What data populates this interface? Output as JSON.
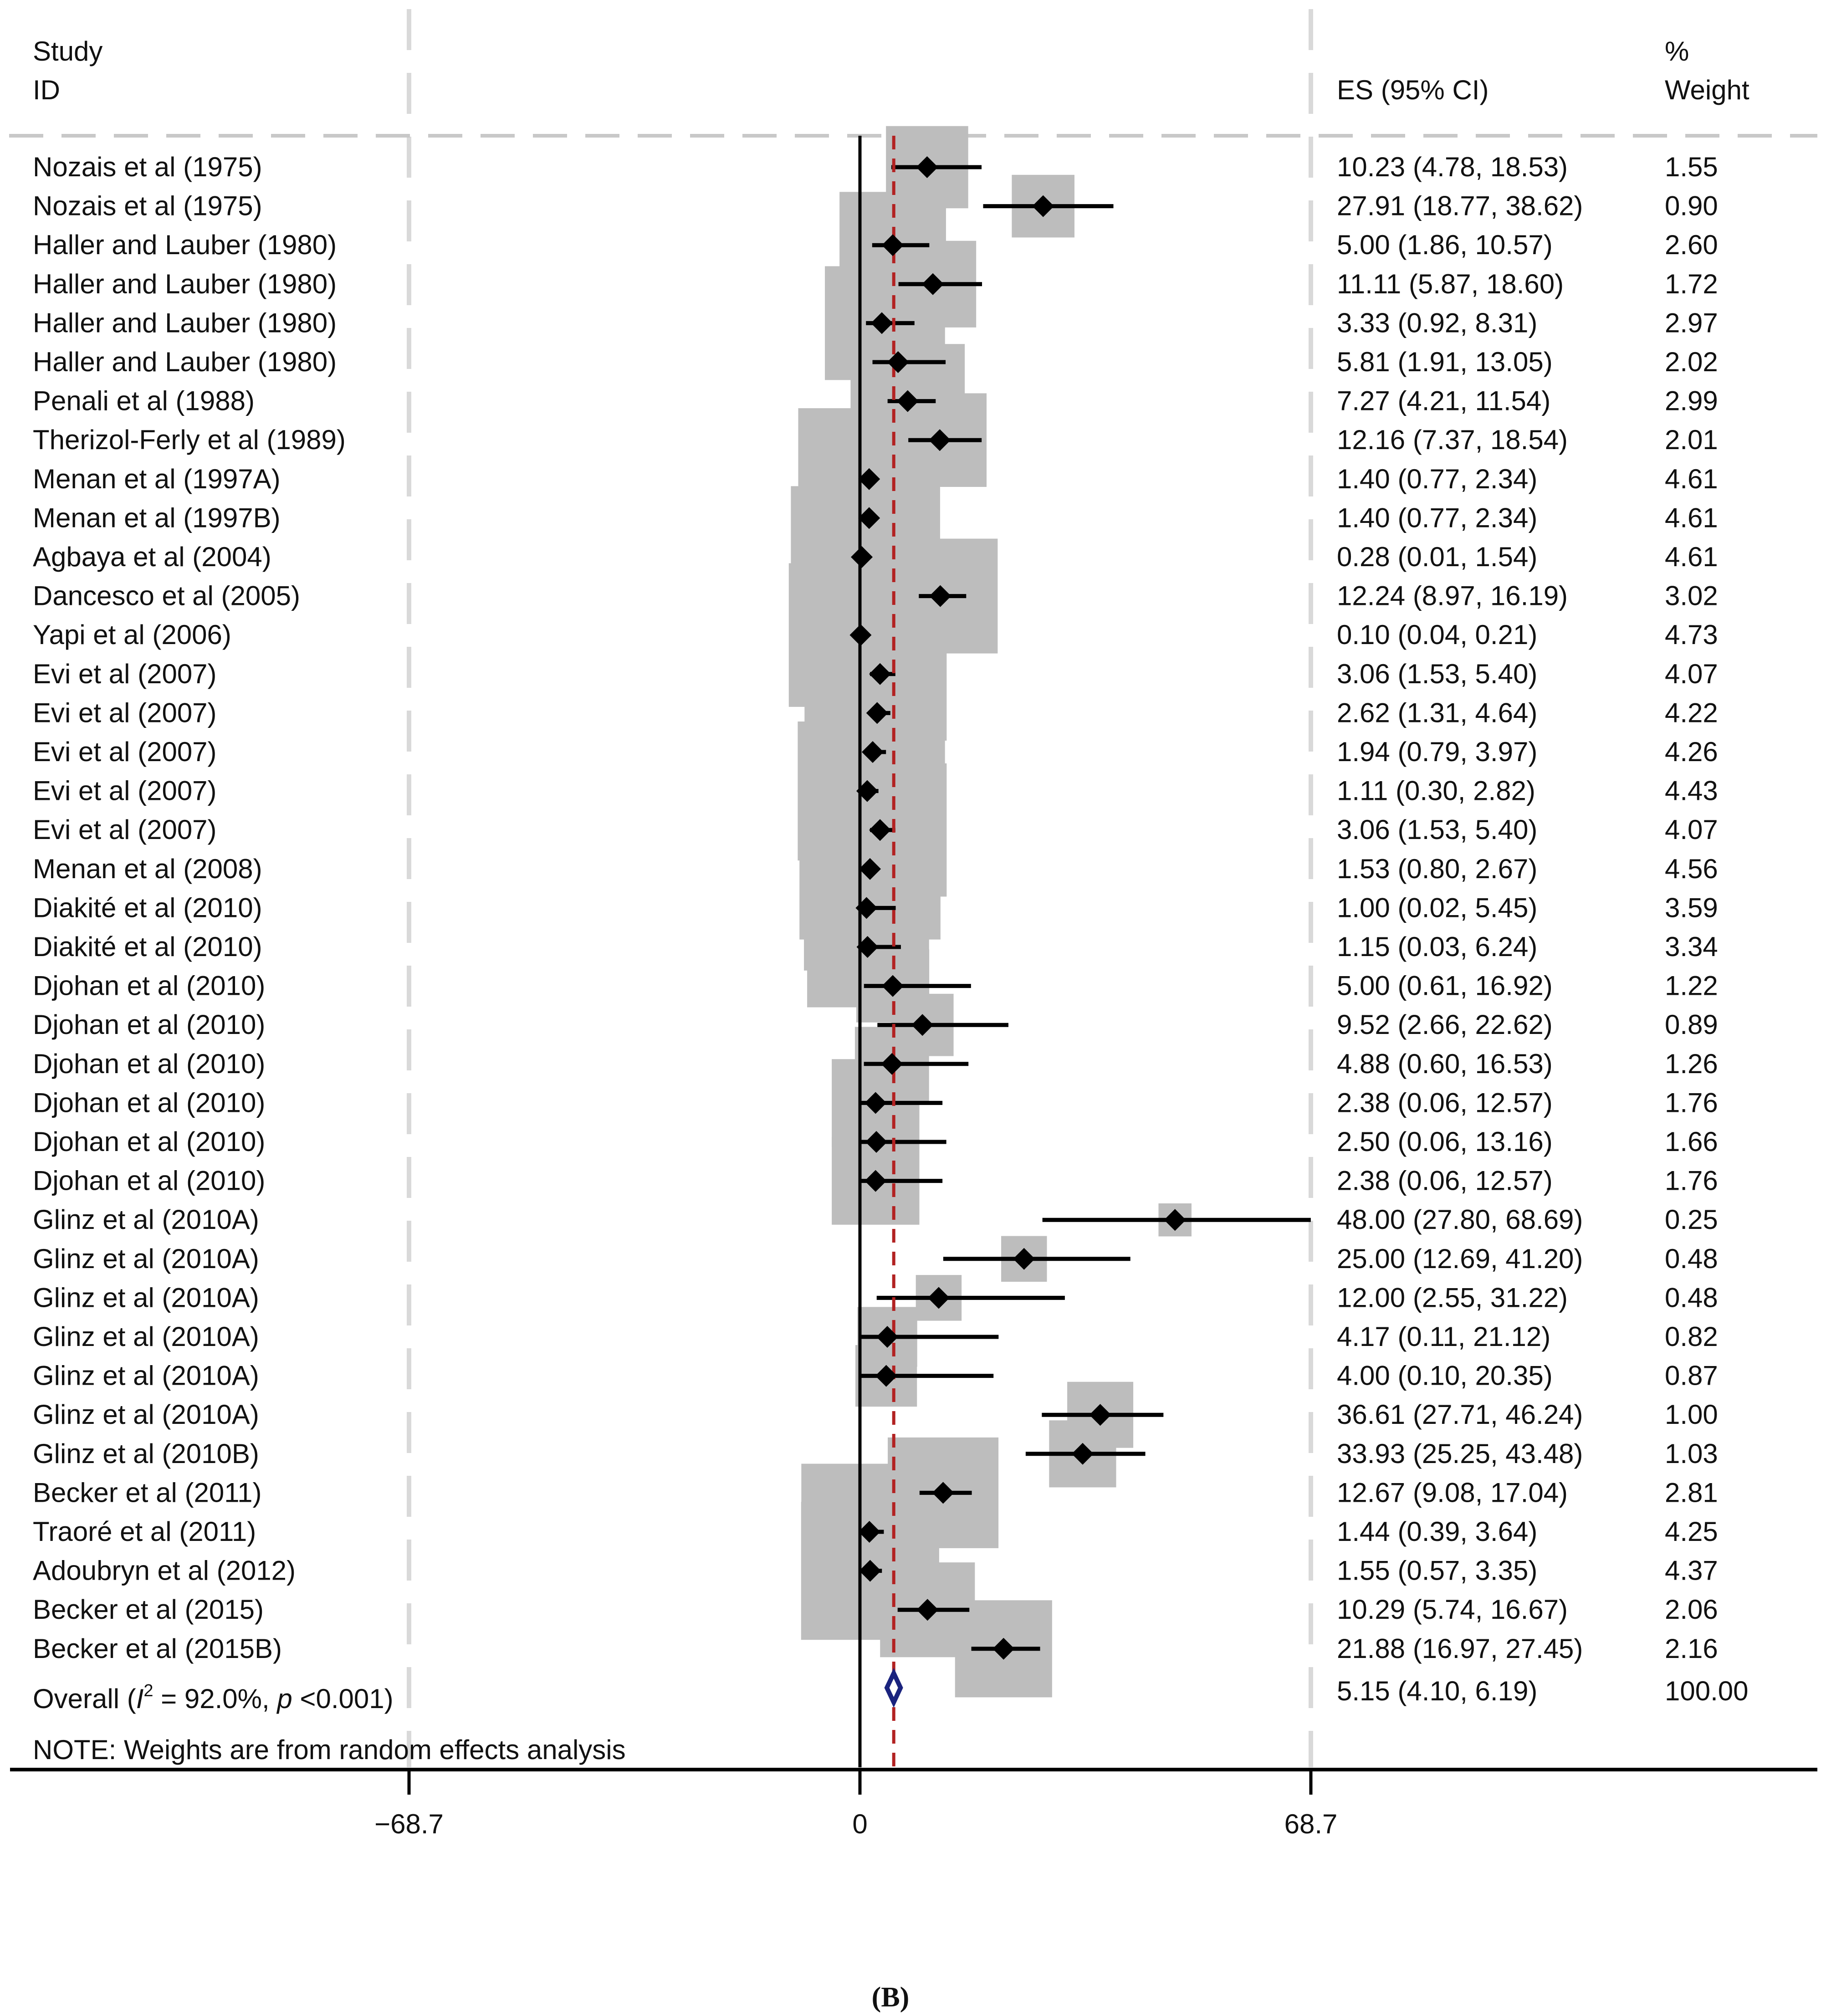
{
  "chart_data": {
    "type": "forest",
    "header": {
      "study_label_1": "Study",
      "study_label_2": "ID",
      "es_label": "ES (95% CI)",
      "weight_label_1": "%",
      "weight_label_2": "Weight"
    },
    "studies": [
      {
        "name": "Nozais et al (1975)",
        "es": 10.23,
        "lo": 4.78,
        "hi": 18.53,
        "es_text": "10.23 (4.78, 18.53)",
        "weight": 1.55,
        "weight_text": "1.55"
      },
      {
        "name": "Nozais et al (1975)",
        "es": 27.91,
        "lo": 18.77,
        "hi": 38.62,
        "es_text": "27.91 (18.77, 38.62)",
        "weight": 0.9,
        "weight_text": "0.90"
      },
      {
        "name": "Haller and Lauber (1980)",
        "es": 5.0,
        "lo": 1.86,
        "hi": 10.57,
        "es_text": "5.00 (1.86, 10.57)",
        "weight": 2.6,
        "weight_text": "2.60"
      },
      {
        "name": "Haller and Lauber (1980)",
        "es": 11.11,
        "lo": 5.87,
        "hi": 18.6,
        "es_text": "11.11 (5.87, 18.60)",
        "weight": 1.72,
        "weight_text": "1.72"
      },
      {
        "name": "Haller and Lauber (1980)",
        "es": 3.33,
        "lo": 0.92,
        "hi": 8.31,
        "es_text": "3.33 (0.92, 8.31)",
        "weight": 2.97,
        "weight_text": "2.97"
      },
      {
        "name": "Haller and Lauber (1980)",
        "es": 5.81,
        "lo": 1.91,
        "hi": 13.05,
        "es_text": "5.81 (1.91, 13.05)",
        "weight": 2.02,
        "weight_text": "2.02"
      },
      {
        "name": "Penali et al (1988)",
        "es": 7.27,
        "lo": 4.21,
        "hi": 11.54,
        "es_text": "7.27 (4.21, 11.54)",
        "weight": 2.99,
        "weight_text": "2.99"
      },
      {
        "name": "Therizol-Ferly et al (1989)",
        "es": 12.16,
        "lo": 7.37,
        "hi": 18.54,
        "es_text": "12.16 (7.37, 18.54)",
        "weight": 2.01,
        "weight_text": "2.01"
      },
      {
        "name": "Menan et al (1997A)",
        "es": 1.4,
        "lo": 0.77,
        "hi": 2.34,
        "es_text": "1.40 (0.77, 2.34)",
        "weight": 4.61,
        "weight_text": "4.61"
      },
      {
        "name": "Menan et al (1997B)",
        "es": 1.4,
        "lo": 0.77,
        "hi": 2.34,
        "es_text": "1.40 (0.77, 2.34)",
        "weight": 4.61,
        "weight_text": "4.61"
      },
      {
        "name": "Agbaya et al (2004)",
        "es": 0.28,
        "lo": 0.01,
        "hi": 1.54,
        "es_text": "0.28 (0.01, 1.54)",
        "weight": 4.61,
        "weight_text": "4.61"
      },
      {
        "name": "Dancesco et al (2005)",
        "es": 12.24,
        "lo": 8.97,
        "hi": 16.19,
        "es_text": "12.24 (8.97, 16.19)",
        "weight": 3.02,
        "weight_text": "3.02"
      },
      {
        "name": "Yapi et al (2006)",
        "es": 0.1,
        "lo": 0.04,
        "hi": 0.21,
        "es_text": "0.10 (0.04, 0.21)",
        "weight": 4.73,
        "weight_text": "4.73"
      },
      {
        "name": "Evi et al (2007)",
        "es": 3.06,
        "lo": 1.53,
        "hi": 5.4,
        "es_text": "3.06 (1.53, 5.40)",
        "weight": 4.07,
        "weight_text": "4.07"
      },
      {
        "name": "Evi et al (2007)",
        "es": 2.62,
        "lo": 1.31,
        "hi": 4.64,
        "es_text": "2.62 (1.31, 4.64)",
        "weight": 4.22,
        "weight_text": "4.22"
      },
      {
        "name": "Evi et al (2007)",
        "es": 1.94,
        "lo": 0.79,
        "hi": 3.97,
        "es_text": "1.94 (0.79, 3.97)",
        "weight": 4.26,
        "weight_text": "4.26"
      },
      {
        "name": "Evi et al (2007)",
        "es": 1.11,
        "lo": 0.3,
        "hi": 2.82,
        "es_text": "1.11 (0.30, 2.82)",
        "weight": 4.43,
        "weight_text": "4.43"
      },
      {
        "name": "Evi et al (2007)",
        "es": 3.06,
        "lo": 1.53,
        "hi": 5.4,
        "es_text": "3.06 (1.53, 5.40)",
        "weight": 4.07,
        "weight_text": "4.07"
      },
      {
        "name": "Menan et al (2008)",
        "es": 1.53,
        "lo": 0.8,
        "hi": 2.67,
        "es_text": "1.53 (0.80, 2.67)",
        "weight": 4.56,
        "weight_text": "4.56"
      },
      {
        "name": "Diakité et al (2010)",
        "es": 1.0,
        "lo": 0.02,
        "hi": 5.45,
        "es_text": "1.00 (0.02, 5.45)",
        "weight": 3.59,
        "weight_text": "3.59"
      },
      {
        "name": "Diakité et al (2010)",
        "es": 1.15,
        "lo": 0.03,
        "hi": 6.24,
        "es_text": "1.15 (0.03, 6.24)",
        "weight": 3.34,
        "weight_text": "3.34"
      },
      {
        "name": "Djohan et al (2010)",
        "es": 5.0,
        "lo": 0.61,
        "hi": 16.92,
        "es_text": "5.00 (0.61, 16.92)",
        "weight": 1.22,
        "weight_text": "1.22"
      },
      {
        "name": "Djohan et al (2010)",
        "es": 9.52,
        "lo": 2.66,
        "hi": 22.62,
        "es_text": "9.52 (2.66, 22.62)",
        "weight": 0.89,
        "weight_text": "0.89"
      },
      {
        "name": "Djohan et al (2010)",
        "es": 4.88,
        "lo": 0.6,
        "hi": 16.53,
        "es_text": "4.88 (0.60, 16.53)",
        "weight": 1.26,
        "weight_text": "1.26"
      },
      {
        "name": "Djohan et al (2010)",
        "es": 2.38,
        "lo": 0.06,
        "hi": 12.57,
        "es_text": "2.38 (0.06, 12.57)",
        "weight": 1.76,
        "weight_text": "1.76"
      },
      {
        "name": "Djohan et al (2010)",
        "es": 2.5,
        "lo": 0.06,
        "hi": 13.16,
        "es_text": "2.50 (0.06, 13.16)",
        "weight": 1.66,
        "weight_text": "1.66"
      },
      {
        "name": "Djohan et al (2010)",
        "es": 2.38,
        "lo": 0.06,
        "hi": 12.57,
        "es_text": "2.38 (0.06, 12.57)",
        "weight": 1.76,
        "weight_text": "1.76"
      },
      {
        "name": "Glinz et al (2010A)",
        "es": 48.0,
        "lo": 27.8,
        "hi": 68.69,
        "es_text": "48.00 (27.80, 68.69)",
        "weight": 0.25,
        "weight_text": "0.25"
      },
      {
        "name": "Glinz et al (2010A)",
        "es": 25.0,
        "lo": 12.69,
        "hi": 41.2,
        "es_text": "25.00 (12.69, 41.20)",
        "weight": 0.48,
        "weight_text": "0.48"
      },
      {
        "name": "Glinz et al (2010A)",
        "es": 12.0,
        "lo": 2.55,
        "hi": 31.22,
        "es_text": "12.00 (2.55, 31.22)",
        "weight": 0.48,
        "weight_text": "0.48"
      },
      {
        "name": "Glinz et al (2010A)",
        "es": 4.17,
        "lo": 0.11,
        "hi": 21.12,
        "es_text": "4.17 (0.11, 21.12)",
        "weight": 0.82,
        "weight_text": "0.82"
      },
      {
        "name": "Glinz et al (2010A)",
        "es": 4.0,
        "lo": 0.1,
        "hi": 20.35,
        "es_text": "4.00 (0.10, 20.35)",
        "weight": 0.87,
        "weight_text": "0.87"
      },
      {
        "name": "Glinz et al (2010A)",
        "es": 36.61,
        "lo": 27.71,
        "hi": 46.24,
        "es_text": "36.61 (27.71, 46.24)",
        "weight": 1.0,
        "weight_text": "1.00"
      },
      {
        "name": "Glinz et al (2010B)",
        "es": 33.93,
        "lo": 25.25,
        "hi": 43.48,
        "es_text": "33.93 (25.25, 43.48)",
        "weight": 1.03,
        "weight_text": "1.03"
      },
      {
        "name": "Becker et al (2011)",
        "es": 12.67,
        "lo": 9.08,
        "hi": 17.04,
        "es_text": "12.67 (9.08, 17.04)",
        "weight": 2.81,
        "weight_text": "2.81"
      },
      {
        "name": "Traoré et al (2011)",
        "es": 1.44,
        "lo": 0.39,
        "hi": 3.64,
        "es_text": "1.44 (0.39, 3.64)",
        "weight": 4.25,
        "weight_text": "4.25"
      },
      {
        "name": "Adoubryn et al (2012)",
        "es": 1.55,
        "lo": 0.57,
        "hi": 3.35,
        "es_text": "1.55 (0.57, 3.35)",
        "weight": 4.37,
        "weight_text": "4.37"
      },
      {
        "name": "Becker et al (2015)",
        "es": 10.29,
        "lo": 5.74,
        "hi": 16.67,
        "es_text": "10.29 (5.74, 16.67)",
        "weight": 2.06,
        "weight_text": "2.06"
      },
      {
        "name": "Becker et al (2015B)",
        "es": 21.88,
        "lo": 16.97,
        "hi": 27.45,
        "es_text": "21.88 (16.97, 27.45)",
        "weight": 2.16,
        "weight_text": "2.16"
      }
    ],
    "overall": {
      "label_prefix": "Overall (",
      "label_i": "I",
      "label_sup": "2",
      "label_mid": " = 92.0%, ",
      "label_p": "p",
      "label_suffix": " <0.001)",
      "es": 5.15,
      "lo": 4.1,
      "hi": 6.19,
      "es_text": "5.15 (4.10, 6.19)",
      "weight_text": "100.00"
    },
    "note": "NOTE: Weights are from random effects analysis",
    "x_axis": {
      "min": -68.7,
      "max": 68.7,
      "ticks": [
        -68.7,
        0,
        68.7
      ],
      "tick_labels": [
        "−68.7",
        "0",
        "68.7"
      ]
    },
    "panel_caption": "(B)",
    "colors": {
      "weight_box": "#bdbdbd",
      "point": "#000000",
      "overall_diamond": "#1a237e",
      "overall_line": "#b22222",
      "gridline": "#d9d9d9"
    }
  }
}
